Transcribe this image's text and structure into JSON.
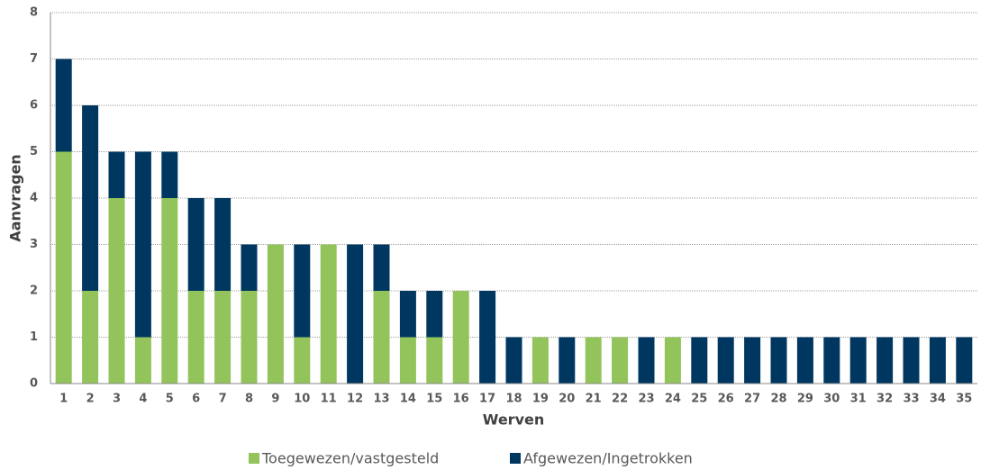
{
  "chart_data": {
    "type": "stacked-bar",
    "x_label": "Werven",
    "y_label": "Aanvragen",
    "categories": [
      "1",
      "2",
      "3",
      "4",
      "5",
      "6",
      "7",
      "8",
      "9",
      "10",
      "11",
      "12",
      "13",
      "14",
      "15",
      "16",
      "17",
      "18",
      "19",
      "20",
      "21",
      "22",
      "23",
      "24",
      "25",
      "26",
      "27",
      "28",
      "29",
      "30",
      "31",
      "32",
      "33",
      "34",
      "35"
    ],
    "series": [
      {
        "name": "Toegewezen/vastgesteld",
        "color": "#93c35b",
        "values": [
          5,
          2,
          4,
          1,
          4,
          2,
          2,
          2,
          3,
          1,
          3,
          0,
          2,
          1,
          1,
          2,
          0,
          0,
          1,
          0,
          1,
          1,
          0,
          1,
          0,
          0,
          0,
          0,
          0,
          0,
          0,
          0,
          0,
          0,
          0
        ]
      },
      {
        "name": "Afgewezen/Ingetrokken",
        "color": "#003760",
        "values": [
          2,
          4,
          1,
          4,
          1,
          2,
          2,
          1,
          0,
          2,
          0,
          3,
          1,
          1,
          1,
          0,
          2,
          1,
          0,
          1,
          0,
          0,
          1,
          0,
          1,
          1,
          1,
          1,
          1,
          1,
          1,
          1,
          1,
          1,
          1
        ]
      }
    ],
    "ylim": [
      0,
      8
    ],
    "yticks": [
      0,
      1,
      2,
      3,
      4,
      5,
      6,
      7,
      8
    ],
    "grid": true
  }
}
